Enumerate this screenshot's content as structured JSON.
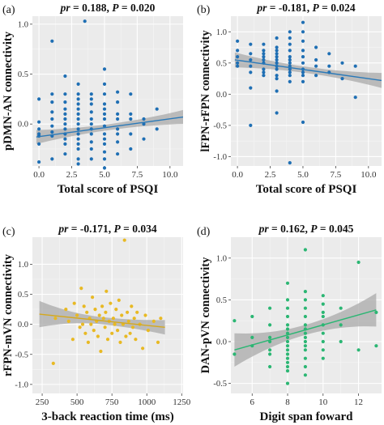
{
  "chart_data": [
    {
      "type": "scatter",
      "panel_label": "(a)",
      "title": "pr = 0.188, P = 0.020",
      "xlabel": "Total score of PSQI",
      "ylabel": "pDMN-AN connectivity",
      "xlim": [
        -0.5,
        11
      ],
      "ylim": [
        -0.42,
        1.08
      ],
      "xticks": [
        "0.0",
        "2.5",
        "5.0",
        "7.5",
        "10.0"
      ],
      "yticks": [
        "-0.5",
        "0.0",
        "0.5",
        "1.0"
      ],
      "point_color": "#1f6fb4",
      "line_color": "#2a79b8",
      "grid": true,
      "fit": {
        "x": [
          -0.2,
          11
        ],
        "y": [
          -0.13,
          0.07
        ],
        "band_halfwidth": [
          0.07,
          0.03,
          0.07
        ]
      },
      "points": [
        [
          0,
          -0.12
        ],
        [
          0,
          -0.1
        ],
        [
          0,
          -0.05
        ],
        [
          0,
          0.25
        ],
        [
          0,
          -0.2
        ],
        [
          0,
          -0.38
        ],
        [
          0,
          0.02
        ],
        [
          1,
          0.83
        ],
        [
          1,
          0.22
        ],
        [
          1,
          0.12
        ],
        [
          1,
          0.05
        ],
        [
          1,
          -0.02
        ],
        [
          1,
          -0.08
        ],
        [
          1,
          -0.12
        ],
        [
          1,
          -0.35
        ],
        [
          1,
          0.3
        ],
        [
          2,
          0.48
        ],
        [
          2,
          0.3
        ],
        [
          2,
          0.22
        ],
        [
          2,
          0.15
        ],
        [
          2,
          0.1
        ],
        [
          2,
          0.05
        ],
        [
          2,
          0.0
        ],
        [
          2,
          -0.05
        ],
        [
          2,
          -0.1
        ],
        [
          2,
          -0.15
        ],
        [
          2,
          -0.2
        ],
        [
          2,
          -0.3
        ],
        [
          3,
          0.4
        ],
        [
          3,
          0.3
        ],
        [
          3,
          0.25
        ],
        [
          3,
          0.2
        ],
        [
          3,
          0.15
        ],
        [
          3,
          0.1
        ],
        [
          3,
          0.05
        ],
        [
          3,
          0.0
        ],
        [
          3,
          -0.05
        ],
        [
          3,
          -0.1
        ],
        [
          3,
          -0.15
        ],
        [
          3,
          -0.2
        ],
        [
          3,
          -0.25
        ],
        [
          3,
          -0.35
        ],
        [
          3,
          -0.4
        ],
        [
          3.5,
          1.03
        ],
        [
          4,
          0.3
        ],
        [
          4,
          0.25
        ],
        [
          4,
          0.2
        ],
        [
          4,
          0.12
        ],
        [
          4,
          0.05
        ],
        [
          4,
          0.0
        ],
        [
          4,
          -0.05
        ],
        [
          4,
          -0.1
        ],
        [
          4,
          -0.18
        ],
        [
          4,
          -0.25
        ],
        [
          4,
          -0.35
        ],
        [
          5,
          0.55
        ],
        [
          5,
          0.4
        ],
        [
          5,
          0.3
        ],
        [
          5,
          0.2
        ],
        [
          5,
          0.15
        ],
        [
          5,
          0.1
        ],
        [
          5,
          0.05
        ],
        [
          5,
          -0.02
        ],
        [
          5,
          -0.1
        ],
        [
          5,
          -0.15
        ],
        [
          5,
          -0.2
        ],
        [
          5,
          -0.28
        ],
        [
          5,
          -0.35
        ],
        [
          5,
          -0.44
        ],
        [
          6,
          0.32
        ],
        [
          6,
          0.22
        ],
        [
          6,
          0.1
        ],
        [
          6,
          0.05
        ],
        [
          6,
          -0.05
        ],
        [
          6,
          -0.1
        ],
        [
          6,
          -0.18
        ],
        [
          6,
          -0.3
        ],
        [
          7,
          0.3
        ],
        [
          7,
          0.1
        ],
        [
          7,
          0.05
        ],
        [
          7,
          -0.1
        ],
        [
          7,
          -0.25
        ],
        [
          8,
          0.05
        ],
        [
          8,
          0.0
        ],
        [
          8,
          -0.15
        ],
        [
          9,
          0.15
        ],
        [
          9,
          -0.05
        ]
      ]
    },
    {
      "type": "scatter",
      "panel_label": "(b)",
      "title": "pr = -0.181, P = 0.024",
      "xlabel": "Total score of PSQI",
      "ylabel": "lFPN-rFPN connectivity",
      "xlim": [
        -0.5,
        11
      ],
      "ylim": [
        -1.15,
        1.25
      ],
      "xticks": [
        "0.0",
        "2.5",
        "5.0",
        "7.5",
        "10.0"
      ],
      "yticks": [
        "-1.0",
        "-0.5",
        "0.0",
        "0.5",
        "1.0"
      ],
      "point_color": "#1f6fb4",
      "line_color": "#2a79b8",
      "grid": true,
      "fit": {
        "x": [
          -0.2,
          11
        ],
        "y": [
          0.55,
          0.22
        ],
        "band_halfwidth": [
          0.12,
          0.05,
          0.12
        ]
      },
      "points": [
        [
          0,
          0.85
        ],
        [
          0,
          0.7
        ],
        [
          0,
          0.6
        ],
        [
          0,
          0.5
        ],
        [
          0,
          0.45
        ],
        [
          1,
          0.8
        ],
        [
          1,
          0.65
        ],
        [
          1,
          0.55
        ],
        [
          1,
          0.45
        ],
        [
          1,
          0.35
        ],
        [
          1,
          0.1
        ],
        [
          1,
          -0.5
        ],
        [
          2,
          0.8
        ],
        [
          2,
          0.7
        ],
        [
          2,
          0.65
        ],
        [
          2,
          0.6
        ],
        [
          2,
          0.55
        ],
        [
          2,
          0.5
        ],
        [
          2,
          0.4
        ],
        [
          2,
          0.35
        ],
        [
          2,
          0.3
        ],
        [
          3,
          0.9
        ],
        [
          3,
          0.75
        ],
        [
          3,
          0.7
        ],
        [
          3,
          0.65
        ],
        [
          3,
          0.6
        ],
        [
          3,
          0.55
        ],
        [
          3,
          0.5
        ],
        [
          3,
          0.45
        ],
        [
          3,
          0.4
        ],
        [
          3,
          0.3
        ],
        [
          3,
          0.25
        ],
        [
          3,
          0.05
        ],
        [
          3,
          -0.3
        ],
        [
          4,
          1.0
        ],
        [
          4,
          0.9
        ],
        [
          4,
          0.8
        ],
        [
          4,
          0.7
        ],
        [
          4,
          0.6
        ],
        [
          4,
          0.55
        ],
        [
          4,
          0.5
        ],
        [
          4,
          0.45
        ],
        [
          4,
          0.4
        ],
        [
          4,
          0.35
        ],
        [
          4,
          0.3
        ],
        [
          4,
          0.2
        ],
        [
          4,
          -1.1
        ],
        [
          5,
          1.15
        ],
        [
          5,
          1.0
        ],
        [
          5,
          0.85
        ],
        [
          5,
          0.7
        ],
        [
          5,
          0.6
        ],
        [
          5,
          0.5
        ],
        [
          5,
          0.4
        ],
        [
          5,
          0.35
        ],
        [
          5,
          0.3
        ],
        [
          5,
          0.2
        ],
        [
          5,
          -0.45
        ],
        [
          6,
          0.75
        ],
        [
          6,
          0.55
        ],
        [
          6,
          0.45
        ],
        [
          6,
          0.3
        ],
        [
          7,
          0.65
        ],
        [
          7,
          0.45
        ],
        [
          7,
          0.35
        ],
        [
          8,
          0.5
        ],
        [
          8,
          0.25
        ],
        [
          9,
          0.45
        ],
        [
          9,
          -0.05
        ]
      ]
    },
    {
      "type": "scatter",
      "panel_label": "(c)",
      "title": "pr = -0.171, P = 0.034",
      "xlabel": "3-back reaction time (ms)",
      "ylabel": "rFPN-mVN connectivity",
      "xlim": [
        180,
        1260
      ],
      "ylim": [
        -1.15,
        1.45
      ],
      "xticks": [
        "250",
        "500",
        "750",
        "1000",
        "1250"
      ],
      "yticks": [
        "-1.0",
        "-0.5",
        "0.0",
        "0.5",
        "1.0"
      ],
      "point_color": "#e8b923",
      "line_color": "#d4a81f",
      "grid": true,
      "fit": {
        "x": [
          230,
          1130
        ],
        "y": [
          0.17,
          -0.05
        ],
        "band_halfwidth": [
          0.22,
          0.06,
          0.12
        ]
      },
      "points": [
        [
          330,
          -0.65
        ],
        [
          345,
          0.1
        ],
        [
          420,
          0.25
        ],
        [
          440,
          0.05
        ],
        [
          470,
          -0.25
        ],
        [
          480,
          0.35
        ],
        [
          500,
          0.15
        ],
        [
          520,
          -0.05
        ],
        [
          530,
          0.6
        ],
        [
          540,
          0.0
        ],
        [
          550,
          0.3
        ],
        [
          560,
          -0.15
        ],
        [
          570,
          0.2
        ],
        [
          580,
          -0.3
        ],
        [
          590,
          0.1
        ],
        [
          600,
          0.0
        ],
        [
          610,
          0.45
        ],
        [
          620,
          -0.1
        ],
        [
          630,
          0.25
        ],
        [
          640,
          0.05
        ],
        [
          650,
          -0.2
        ],
        [
          660,
          0.15
        ],
        [
          670,
          -0.45
        ],
        [
          680,
          0.3
        ],
        [
          690,
          0.1
        ],
        [
          700,
          -0.05
        ],
        [
          705,
          0.2
        ],
        [
          710,
          0.55
        ],
        [
          720,
          -0.25
        ],
        [
          730,
          0.05
        ],
        [
          740,
          0.35
        ],
        [
          750,
          -0.15
        ],
        [
          760,
          0.1
        ],
        [
          770,
          0.0
        ],
        [
          780,
          0.25
        ],
        [
          790,
          -0.1
        ],
        [
          800,
          0.4
        ],
        [
          810,
          -0.3
        ],
        [
          820,
          0.15
        ],
        [
          830,
          0.0
        ],
        [
          840,
          1.4
        ],
        [
          850,
          -0.2
        ],
        [
          860,
          0.2
        ],
        [
          870,
          0.05
        ],
        [
          880,
          -0.15
        ],
        [
          890,
          0.3
        ],
        [
          900,
          -0.05
        ],
        [
          910,
          0.1
        ],
        [
          920,
          -0.25
        ],
        [
          930,
          0.2
        ],
        [
          950,
          0.0
        ],
        [
          970,
          -0.4
        ],
        [
          990,
          0.15
        ],
        [
          1010,
          -0.1
        ],
        [
          1050,
          0.05
        ],
        [
          1080,
          -0.3
        ],
        [
          1100,
          0.1
        ]
      ]
    },
    {
      "type": "scatter",
      "panel_label": "(d)",
      "title": "pr = 0.162, P = 0.045",
      "xlabel": "Digit span foward",
      "ylabel": "DAN-pVN connectivity",
      "xlim": [
        4.8,
        13.3
      ],
      "ylim": [
        -0.62,
        1.25
      ],
      "xticks": [
        "6",
        "8",
        "10",
        "12"
      ],
      "yticks": [
        "-0.5",
        "0.0",
        "0.5",
        "1.0"
      ],
      "point_color": "#2bb673",
      "line_color": "#2bb673",
      "grid": true,
      "fit": {
        "x": [
          5,
          13
        ],
        "y": [
          -0.1,
          0.38
        ],
        "band_halfwidth": [
          0.2,
          0.06,
          0.2
        ]
      },
      "points": [
        [
          5,
          0.25
        ],
        [
          5,
          -0.15
        ],
        [
          6,
          0.3
        ],
        [
          6,
          0.05
        ],
        [
          6,
          -0.05
        ],
        [
          7,
          0.4
        ],
        [
          7,
          0.2
        ],
        [
          7,
          0.05
        ],
        [
          7,
          0.0
        ],
        [
          7,
          -0.1
        ],
        [
          7,
          -0.15
        ],
        [
          7,
          -0.3
        ],
        [
          8,
          0.7
        ],
        [
          8,
          0.5
        ],
        [
          8,
          0.4
        ],
        [
          8,
          0.3
        ],
        [
          8,
          0.2
        ],
        [
          8,
          0.15
        ],
        [
          8,
          0.1
        ],
        [
          8,
          0.05
        ],
        [
          8,
          0.0
        ],
        [
          8,
          -0.05
        ],
        [
          8,
          -0.1
        ],
        [
          8,
          -0.15
        ],
        [
          8,
          -0.2
        ],
        [
          8,
          -0.25
        ],
        [
          8,
          -0.3
        ],
        [
          8,
          -0.35
        ],
        [
          8,
          -0.5
        ],
        [
          9,
          1.1
        ],
        [
          9,
          0.6
        ],
        [
          9,
          0.5
        ],
        [
          9,
          0.4
        ],
        [
          9,
          0.3
        ],
        [
          9,
          0.2
        ],
        [
          9,
          0.15
        ],
        [
          9,
          0.1
        ],
        [
          9,
          0.05
        ],
        [
          9,
          0.0
        ],
        [
          9,
          -0.05
        ],
        [
          9,
          -0.1
        ],
        [
          9,
          -0.2
        ],
        [
          9,
          -0.3
        ],
        [
          9,
          -0.4
        ],
        [
          10,
          0.55
        ],
        [
          10,
          0.45
        ],
        [
          10,
          0.35
        ],
        [
          10,
          0.3
        ],
        [
          10,
          0.2
        ],
        [
          10,
          0.1
        ],
        [
          10,
          0.0
        ],
        [
          10,
          -0.1
        ],
        [
          10,
          -0.2
        ],
        [
          11,
          0.4
        ],
        [
          11,
          0.2
        ],
        [
          11,
          0.0
        ],
        [
          12,
          0.95
        ],
        [
          12,
          -0.1
        ],
        [
          13,
          0.35
        ],
        [
          13,
          -0.05
        ]
      ]
    }
  ]
}
